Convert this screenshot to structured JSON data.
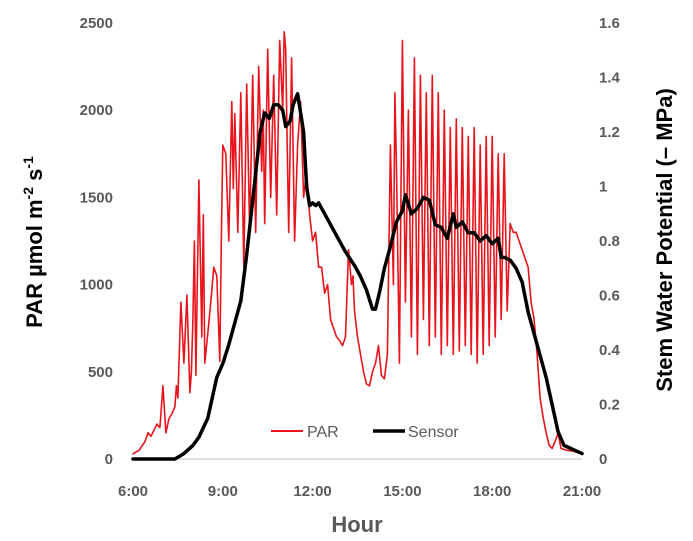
{
  "chart_data": {
    "type": "line",
    "xlabel": "Hour",
    "ylabel_main": "PAR µmol m",
    "ylabel_sup1": "-2",
    "ylabel_mid": " s",
    "ylabel_sup2": "-1",
    "y2label": "Stem Water Potential (– MPa)",
    "xlim": [
      6,
      21
    ],
    "ylim": [
      0,
      2500
    ],
    "y2lim": [
      0,
      1.6
    ],
    "xtick_values": [
      6,
      9,
      12,
      15,
      18,
      21
    ],
    "xtick_labels": [
      "6:00",
      "9:00",
      "12:00",
      "15:00",
      "18:00",
      "21:00"
    ],
    "ytick_labels": [
      "0",
      "500",
      "1000",
      "1500",
      "2000",
      "2500"
    ],
    "y2tick_labels": [
      "0",
      "0.2",
      "0.4",
      "0.6",
      "0.8",
      "1",
      "1.2",
      "1.4",
      "1.6"
    ],
    "legend_position": "bottom-center",
    "series": [
      {
        "name": "PAR",
        "axis": "left",
        "color": "#e8141c",
        "x": [
          6.0,
          6.2,
          6.4,
          6.5,
          6.6,
          6.8,
          6.9,
          7.0,
          7.1,
          7.2,
          7.3,
          7.4,
          7.45,
          7.5,
          7.6,
          7.7,
          7.8,
          7.9,
          7.95,
          8.0,
          8.05,
          8.1,
          8.2,
          8.3,
          8.35,
          8.4,
          8.5,
          8.6,
          8.7,
          8.8,
          8.9,
          8.95,
          9.0,
          9.1,
          9.2,
          9.3,
          9.35,
          9.4,
          9.5,
          9.6,
          9.7,
          9.8,
          9.9,
          10.0,
          10.1,
          10.2,
          10.3,
          10.35,
          10.4,
          10.5,
          10.6,
          10.7,
          10.8,
          10.9,
          11.0,
          11.05,
          11.1,
          11.15,
          11.2,
          11.3,
          11.4,
          11.5,
          11.6,
          11.7,
          11.8,
          11.9,
          12.0,
          12.1,
          12.2,
          12.3,
          12.4,
          12.5,
          12.6,
          12.7,
          12.8,
          12.9,
          13.0,
          13.1,
          13.2,
          13.3,
          13.35,
          13.4,
          13.5,
          13.6,
          13.7,
          13.8,
          13.9,
          14.0,
          14.1,
          14.2,
          14.3,
          14.4,
          14.5,
          14.6,
          14.7,
          14.75,
          14.8,
          14.9,
          15.0,
          15.1,
          15.2,
          15.3,
          15.4,
          15.5,
          15.6,
          15.7,
          15.8,
          15.9,
          16.0,
          16.1,
          16.2,
          16.3,
          16.4,
          16.5,
          16.6,
          16.7,
          16.8,
          16.9,
          17.0,
          17.1,
          17.2,
          17.3,
          17.4,
          17.5,
          17.6,
          17.7,
          17.8,
          17.9,
          18.0,
          18.1,
          18.2,
          18.3,
          18.4,
          18.5,
          18.6,
          18.7,
          18.8,
          18.9,
          19.0,
          19.1,
          19.2,
          19.3,
          19.4,
          19.5,
          19.6,
          19.7,
          19.8,
          19.9,
          20.0,
          20.1,
          20.2,
          20.3,
          20.4,
          20.5,
          20.7,
          20.9,
          21.0
        ],
        "values": [
          30,
          50,
          100,
          150,
          130,
          200,
          180,
          420,
          150,
          230,
          260,
          300,
          420,
          350,
          900,
          550,
          940,
          380,
          500,
          800,
          1250,
          480,
          1600,
          700,
          1400,
          550,
          720,
          900,
          1100,
          1050,
          560,
          1250,
          1800,
          1750,
          1250,
          2050,
          1550,
          1980,
          1300,
          2100,
          1100,
          2150,
          1300,
          2200,
          1300,
          2250,
          1650,
          2000,
          1350,
          2350,
          1500,
          2200,
          1400,
          2400,
          2000,
          2450,
          2350,
          1800,
          1300,
          2300,
          1250,
          1800,
          2050,
          1500,
          1650,
          1400,
          1250,
          1300,
          1100,
          1100,
          950,
          1000,
          800,
          750,
          700,
          680,
          650,
          700,
          1200,
          1000,
          1050,
          850,
          700,
          600,
          500,
          430,
          420,
          500,
          550,
          650,
          480,
          460,
          600,
          1800,
          1000,
          2100,
          1700,
          550,
          2400,
          900,
          2000,
          700,
          2300,
          600,
          2200,
          800,
          2100,
          650,
          2200,
          700,
          2100,
          600,
          2000,
          650,
          1900,
          600,
          1950,
          620,
          1900,
          650,
          1850,
          600,
          1900,
          550,
          1800,
          600,
          1850,
          650,
          1850,
          700,
          1750,
          800,
          1750,
          850,
          1350,
          1300,
          1300,
          1250,
          1200,
          1150,
          1100,
          900,
          800,
          600,
          350,
          240,
          150,
          80,
          60,
          100,
          150,
          60,
          55,
          50,
          45,
          35,
          30
        ]
      },
      {
        "name": "Sensor",
        "axis": "right",
        "color": "#000000",
        "x": [
          6.0,
          7.0,
          7.4,
          7.7,
          8.0,
          8.2,
          8.5,
          8.8,
          9.0,
          9.2,
          9.4,
          9.6,
          9.8,
          9.95,
          10.1,
          10.25,
          10.4,
          10.55,
          10.7,
          10.85,
          11.0,
          11.1,
          11.25,
          11.35,
          11.5,
          11.6,
          11.7,
          11.8,
          11.9,
          12.0,
          12.1,
          12.2,
          12.3,
          12.5,
          12.8,
          13.1,
          13.4,
          13.6,
          13.8,
          14.0,
          14.1,
          14.25,
          14.4,
          14.6,
          14.8,
          15.0,
          15.1,
          15.3,
          15.5,
          15.7,
          15.9,
          16.1,
          16.3,
          16.5,
          16.7,
          16.8,
          17.0,
          17.2,
          17.4,
          17.6,
          17.8,
          18.0,
          18.2,
          18.3,
          18.4,
          18.6,
          18.8,
          19.0,
          19.2,
          19.5,
          19.8,
          20.0,
          20.2,
          20.4,
          20.6,
          20.8,
          21.0
        ],
        "values": [
          0.0,
          0.0,
          0.0,
          0.02,
          0.05,
          0.08,
          0.15,
          0.3,
          0.35,
          0.42,
          0.5,
          0.58,
          0.75,
          0.9,
          1.05,
          1.2,
          1.27,
          1.25,
          1.3,
          1.3,
          1.28,
          1.22,
          1.24,
          1.3,
          1.34,
          1.27,
          1.2,
          1.0,
          0.93,
          0.94,
          0.93,
          0.94,
          0.92,
          0.88,
          0.82,
          0.76,
          0.71,
          0.67,
          0.62,
          0.55,
          0.55,
          0.62,
          0.7,
          0.78,
          0.87,
          0.91,
          0.97,
          0.9,
          0.92,
          0.96,
          0.95,
          0.86,
          0.85,
          0.81,
          0.9,
          0.85,
          0.87,
          0.83,
          0.83,
          0.8,
          0.82,
          0.79,
          0.81,
          0.74,
          0.74,
          0.73,
          0.7,
          0.65,
          0.54,
          0.42,
          0.3,
          0.2,
          0.1,
          0.05,
          0.04,
          0.03,
          0.02
        ]
      }
    ]
  }
}
